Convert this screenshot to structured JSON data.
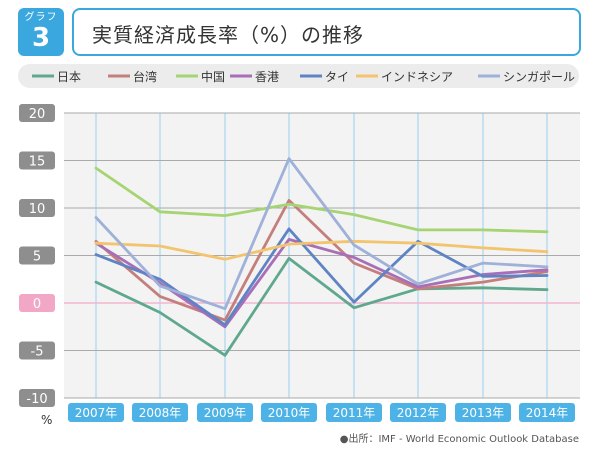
{
  "header": {
    "badge_label": "グラフ",
    "badge_number": "3",
    "title": "実質経済成長率（%）の推移"
  },
  "chart_data": {
    "type": "line",
    "title": "実質経済成長率（%）の推移",
    "xlabel": "",
    "ylabel": "%",
    "ylim": [
      -10,
      20
    ],
    "yticks": [
      20,
      15,
      10,
      5,
      0,
      -5,
      -10
    ],
    "grid": true,
    "legend_position": "top",
    "categories": [
      "2007年",
      "2008年",
      "2009年",
      "2010年",
      "2011年",
      "2012年",
      "2013年",
      "2014年"
    ],
    "series": [
      {
        "name": "日本",
        "color": "#5fa88e",
        "values": [
          2.2,
          -1.0,
          -5.5,
          4.7,
          -0.5,
          1.5,
          1.6,
          1.4
        ]
      },
      {
        "name": "台湾",
        "color": "#c47f7c",
        "values": [
          6.5,
          0.7,
          -1.8,
          10.8,
          4.2,
          1.5,
          2.2,
          3.3
        ]
      },
      {
        "name": "中国",
        "color": "#a6d472",
        "values": [
          14.2,
          9.6,
          9.2,
          10.4,
          9.3,
          7.7,
          7.7,
          7.5
        ]
      },
      {
        "name": "香港",
        "color": "#a86fb8",
        "values": [
          6.3,
          2.1,
          -2.5,
          6.7,
          4.8,
          1.7,
          3.0,
          3.5
        ]
      },
      {
        "name": "タイ",
        "color": "#5e84c4",
        "values": [
          5.1,
          2.5,
          -2.3,
          7.8,
          0.1,
          6.5,
          2.8,
          2.9
        ]
      },
      {
        "name": "インドネシア",
        "color": "#f2c46e",
        "values": [
          6.3,
          6.0,
          4.6,
          6.2,
          6.5,
          6.3,
          5.8,
          5.4
        ]
      },
      {
        "name": "シンガポール",
        "color": "#9fb1d8",
        "values": [
          9.0,
          1.8,
          -0.6,
          15.2,
          6.1,
          2.0,
          4.2,
          3.8
        ]
      }
    ]
  },
  "source": "●出所：IMF - World Economic Outlook Database"
}
